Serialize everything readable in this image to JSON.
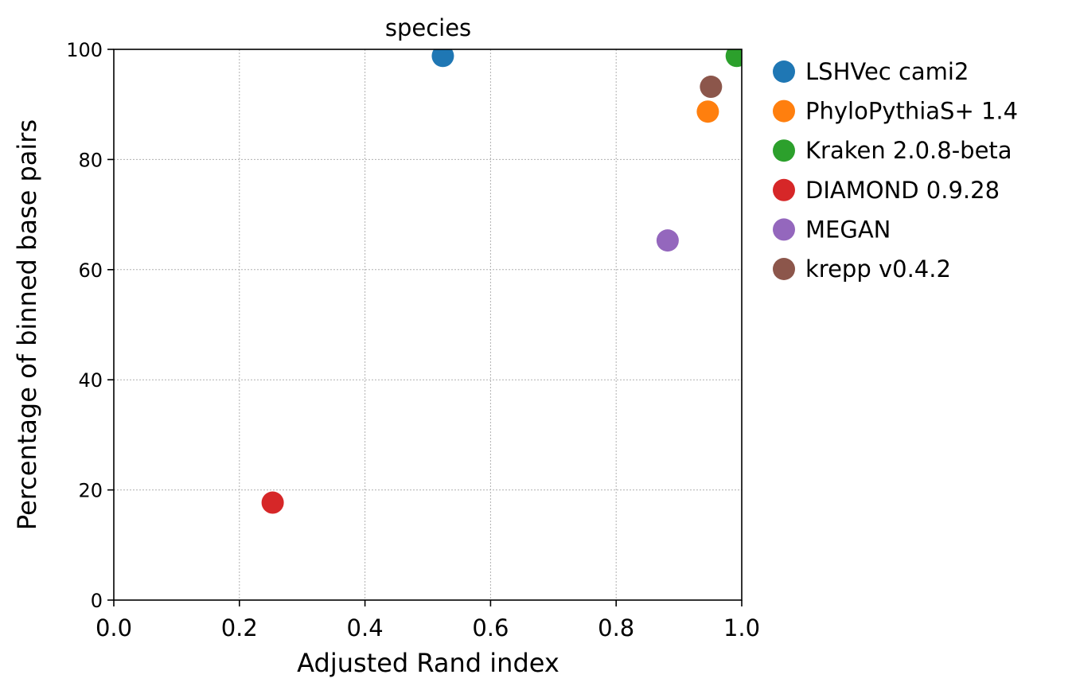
{
  "chart_data": {
    "type": "scatter",
    "title": "species",
    "xlabel": "Adjusted Rand index",
    "ylabel": "Percentage of binned base pairs",
    "xlim": [
      0.0,
      1.0
    ],
    "ylim": [
      0,
      100
    ],
    "xticks": [
      "0.0",
      "0.2",
      "0.4",
      "0.6",
      "0.8",
      "1.0"
    ],
    "yticks": [
      "0",
      "20",
      "40",
      "60",
      "80",
      "100"
    ],
    "grid": true,
    "legend_position": "outside-right",
    "series": [
      {
        "name": "LSHVec cami2",
        "color": "#1f77b4",
        "x": 0.524,
        "y": 98.8
      },
      {
        "name": "PhyloPythiaS+ 1.4",
        "color": "#ff7f0e",
        "x": 0.946,
        "y": 88.7
      },
      {
        "name": "Kraken 2.0.8-beta",
        "color": "#2ca02c",
        "x": 0.992,
        "y": 98.8
      },
      {
        "name": "DIAMOND 0.9.28",
        "color": "#d62728",
        "x": 0.253,
        "y": 17.7
      },
      {
        "name": "MEGAN",
        "color": "#9467bd",
        "x": 0.882,
        "y": 65.3
      },
      {
        "name": "krepp v0.4.2",
        "color": "#8c564b",
        "x": 0.951,
        "y": 93.2
      }
    ]
  }
}
